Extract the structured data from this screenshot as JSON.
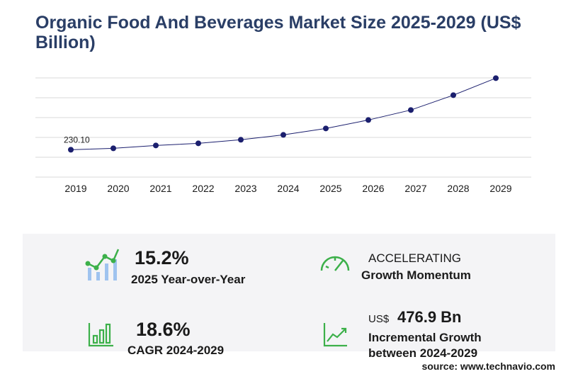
{
  "chart_data": {
    "type": "line",
    "title": "Organic Food And Beverages Market Size 2025-2029 (US$ Billion)",
    "categories": [
      "2019",
      "2020",
      "2021",
      "2022",
      "2023",
      "2024",
      "2025",
      "2026",
      "2027",
      "2028",
      "2029"
    ],
    "values": [
      230.1,
      242,
      266,
      284,
      314,
      355,
      409,
      480,
      564,
      689,
      832
    ],
    "value_labels": [
      "230.10",
      null,
      null,
      null,
      null,
      null,
      null,
      null,
      null,
      null,
      null
    ],
    "color": "#1b1f6e",
    "ylim": [
      0,
      834
    ],
    "grid": true
  },
  "stats": [
    {
      "value": "15.2%",
      "label": "2025 Year-over-Year"
    },
    {
      "value": "ACCELERATING",
      "label": "Growth Momentum"
    },
    {
      "value": "18.6%",
      "label": "CAGR 2024-2029"
    },
    {
      "unit": "US$",
      "value": "476.9 Bn",
      "label": "Incremental Growth",
      "label2": "between 2024-2029"
    }
  ],
  "source": "source: www.technavio.com"
}
